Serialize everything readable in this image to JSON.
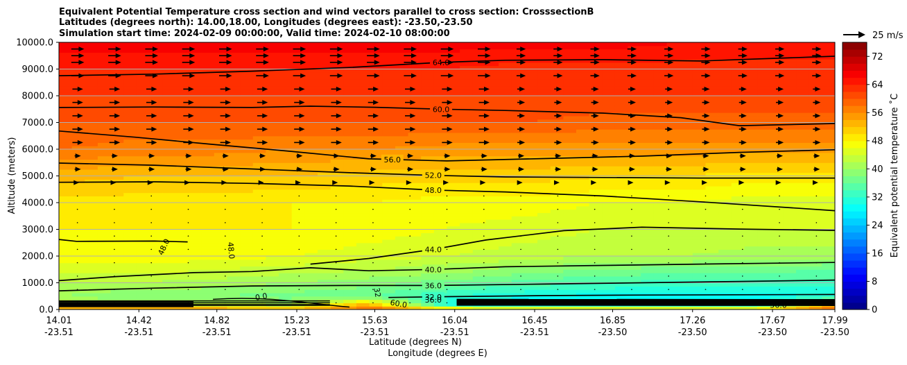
{
  "chart_data": {
    "type": "contourf",
    "title_lines": [
      "Equivalent Potential Temperature cross section and wind vectors parallel to cross section: CrosssectionB",
      "Latitudes (degrees north): 14.00,18.00, Longitudes (degrees east): -23.50,-23.50",
      "Simulation start time: 2024-02-09 00:00:00, Valid time: 2024-02-10 08:00:00"
    ],
    "ylabel": "Altitude (meters)",
    "xlabel_lat": "Latitude (degrees N)",
    "xlabel_lon": "Longitude (degrees E)",
    "ylim": [
      0,
      10000
    ],
    "yticks": [
      0,
      1000,
      2000,
      3000,
      4000,
      5000,
      6000,
      7000,
      8000,
      9000,
      10000
    ],
    "ytick_labels": [
      "0.0",
      "1000.0",
      "2000.0",
      "3000.0",
      "4000.0",
      "5000.0",
      "6000.0",
      "7000.0",
      "8000.0",
      "9000.0",
      "10000.0"
    ],
    "xtick_lat": [
      "14.01",
      "14.42",
      "14.82",
      "15.23",
      "15.63",
      "16.04",
      "16.45",
      "16.85",
      "17.26",
      "17.67",
      "17.99"
    ],
    "xtick_lon": [
      "-23.51",
      "-23.51",
      "-23.51",
      "-23.51",
      "-23.51",
      "-23.51",
      "-23.51",
      "-23.50",
      "-23.50",
      "-23.50",
      "-23.50"
    ],
    "colorbar": {
      "label": "Equivalent potential temperature $^\\circ$C",
      "label_text": "Equivalent potential temperature ˚C",
      "min": 0,
      "max": 76,
      "step": 2,
      "ticks": [
        0,
        8,
        16,
        24,
        32,
        40,
        48,
        56,
        64,
        72
      ],
      "tick_labels": [
        "0",
        "8",
        "16",
        "24",
        "32",
        "40",
        "48",
        "56",
        "64",
        "72"
      ]
    },
    "quiver_key": {
      "label": "25 m/s",
      "speed": 25
    },
    "profiles": [
      {
        "z": 0,
        "v": [
          58,
          58,
          58,
          58,
          58,
          58,
          58,
          58,
          58,
          58,
          58
        ]
      },
      {
        "z": 150,
        "v": [
          44,
          44,
          44,
          42,
          56,
          30,
          28,
          28,
          28,
          28,
          56
        ]
      },
      {
        "z": 500,
        "v": [
          40,
          38,
          38,
          37,
          36,
          32,
          30,
          29,
          29,
          29,
          30
        ]
      },
      {
        "z": 1000,
        "v": [
          42,
          42,
          41,
          40,
          39,
          37,
          35,
          34,
          33,
          33,
          33
        ]
      },
      {
        "z": 1500,
        "v": [
          45,
          45,
          44,
          43,
          42,
          41,
          39,
          38,
          37,
          37,
          36
        ]
      },
      {
        "z": 2000,
        "v": [
          47,
          47,
          47,
          46,
          45,
          44,
          43,
          42,
          42,
          41,
          41
        ]
      },
      {
        "z": 3000,
        "v": [
          48,
          48,
          48,
          48,
          47,
          46,
          45,
          44,
          44,
          44,
          44
        ]
      },
      {
        "z": 4000,
        "v": [
          49,
          49,
          49,
          48,
          48,
          47,
          47,
          46,
          46,
          45,
          45
        ]
      },
      {
        "z": 5000,
        "v": [
          53,
          52,
          52,
          52,
          51,
          51,
          51,
          50,
          50,
          49,
          49
        ]
      },
      {
        "z": 6000,
        "v": [
          58,
          57,
          57,
          56,
          56,
          55,
          55,
          55,
          55,
          55,
          55
        ]
      },
      {
        "z": 7000,
        "v": [
          60,
          60,
          60,
          60,
          60,
          60,
          60,
          59,
          59,
          59,
          59
        ]
      },
      {
        "z": 8000,
        "v": [
          62,
          62,
          62,
          62,
          62,
          62,
          62,
          62,
          62,
          62,
          62
        ]
      },
      {
        "z": 9000,
        "v": [
          64,
          64,
          64,
          64,
          64,
          64,
          63,
          63,
          63,
          63,
          63
        ]
      },
      {
        "z": 10000,
        "v": [
          67,
          67,
          67,
          67,
          67,
          67,
          67,
          67,
          66,
          66,
          66
        ]
      }
    ],
    "contour_lines": [
      {
        "label": "64.0",
        "lx": 15.97,
        "points": [
          [
            14.01,
            8750
          ],
          [
            14.5,
            8810
          ],
          [
            15.0,
            8920
          ],
          [
            15.5,
            9060
          ],
          [
            15.97,
            9250
          ],
          [
            16.3,
            9330
          ],
          [
            16.8,
            9350
          ],
          [
            17.3,
            9300
          ],
          [
            17.99,
            9480
          ]
        ]
      },
      {
        "label": "60.0",
        "lx": 15.97,
        "points": [
          [
            14.01,
            7560
          ],
          [
            14.5,
            7580
          ],
          [
            15.0,
            7560
          ],
          [
            15.3,
            7610
          ],
          [
            15.63,
            7570
          ],
          [
            15.97,
            7500
          ],
          [
            16.3,
            7450
          ],
          [
            16.8,
            7350
          ],
          [
            17.2,
            7180
          ],
          [
            17.5,
            6880
          ],
          [
            17.99,
            6960
          ]
        ]
      },
      {
        "label": "56.0",
        "lx": 15.72,
        "points": [
          [
            14.01,
            6680
          ],
          [
            14.4,
            6450
          ],
          [
            14.8,
            6180
          ],
          [
            15.2,
            5920
          ],
          [
            15.6,
            5640
          ],
          [
            16.0,
            5560
          ],
          [
            16.5,
            5650
          ],
          [
            17.0,
            5740
          ],
          [
            17.5,
            5880
          ],
          [
            17.99,
            5980
          ]
        ]
      },
      {
        "label": "52.0",
        "lx": 15.93,
        "points": [
          [
            14.01,
            5480
          ],
          [
            14.5,
            5400
          ],
          [
            15.0,
            5260
          ],
          [
            15.5,
            5120
          ],
          [
            15.93,
            5020
          ],
          [
            16.3,
            4960
          ],
          [
            16.8,
            4940
          ],
          [
            17.3,
            4920
          ],
          [
            17.99,
            4920
          ]
        ]
      },
      {
        "label": "48.0",
        "lx": 15.93,
        "points": [
          [
            14.01,
            4760
          ],
          [
            14.5,
            4780
          ],
          [
            15.0,
            4720
          ],
          [
            15.5,
            4620
          ],
          [
            15.93,
            4470
          ],
          [
            16.3,
            4400
          ],
          [
            16.8,
            4250
          ],
          [
            17.3,
            4030
          ],
          [
            17.99,
            3700
          ]
        ]
      },
      {
        "label": "44.0",
        "lx": 15.93,
        "points": [
          [
            14.01,
            2620
          ],
          [
            14.1,
            2550
          ],
          [
            14.5,
            2560
          ],
          [
            14.67,
            2530
          ]
        ]
      },
      {
        "label": "44.0",
        "lx": 15.93,
        "points": [
          [
            15.3,
            1700
          ],
          [
            15.6,
            1910
          ],
          [
            15.93,
            2250
          ],
          [
            16.2,
            2600
          ],
          [
            16.6,
            2950
          ],
          [
            17.0,
            3080
          ],
          [
            17.5,
            3010
          ],
          [
            17.99,
            2960
          ]
        ]
      },
      {
        "label": "40.0",
        "lx": 15.93,
        "points": [
          [
            14.01,
            1080
          ],
          [
            14.3,
            1230
          ],
          [
            14.7,
            1380
          ],
          [
            15.0,
            1420
          ],
          [
            15.3,
            1560
          ],
          [
            15.6,
            1450
          ],
          [
            15.93,
            1500
          ],
          [
            16.3,
            1600
          ],
          [
            16.8,
            1650
          ],
          [
            17.3,
            1700
          ],
          [
            17.99,
            1760
          ]
        ]
      },
      {
        "label": "36.0",
        "lx": 15.93,
        "points": [
          [
            14.01,
            700
          ],
          [
            14.5,
            800
          ],
          [
            15.0,
            880
          ],
          [
            15.5,
            900
          ],
          [
            15.93,
            900
          ],
          [
            16.5,
            950
          ],
          [
            17.0,
            1000
          ],
          [
            17.5,
            1050
          ],
          [
            17.99,
            1100
          ]
        ]
      },
      {
        "label": "32.0",
        "lx": 15.93,
        "points": [
          [
            15.7,
            450
          ],
          [
            16.0,
            480
          ],
          [
            16.5,
            520
          ],
          [
            17.0,
            540
          ],
          [
            17.99,
            560
          ]
        ]
      }
    ],
    "inline_labels": [
      {
        "text": "48.0",
        "x": 14.56,
        "z": 2300,
        "rot": -65
      },
      {
        "text": "48.0",
        "x": 14.88,
        "z": 2200,
        "rot": 85
      },
      {
        "text": "32",
        "x": 15.63,
        "z": 620,
        "rot": 80
      },
      {
        "text": "0.0",
        "x": 15.05,
        "z": 380,
        "rot": -10
      },
      {
        "text": "60.0",
        "x": 15.75,
        "z": 120,
        "rot": 10
      },
      {
        "text": "56.0",
        "x": 17.7,
        "z": 60,
        "rot": 0
      },
      {
        "text": "36.0",
        "x": 15.93,
        "z": 260,
        "rot": 0
      }
    ]
  }
}
